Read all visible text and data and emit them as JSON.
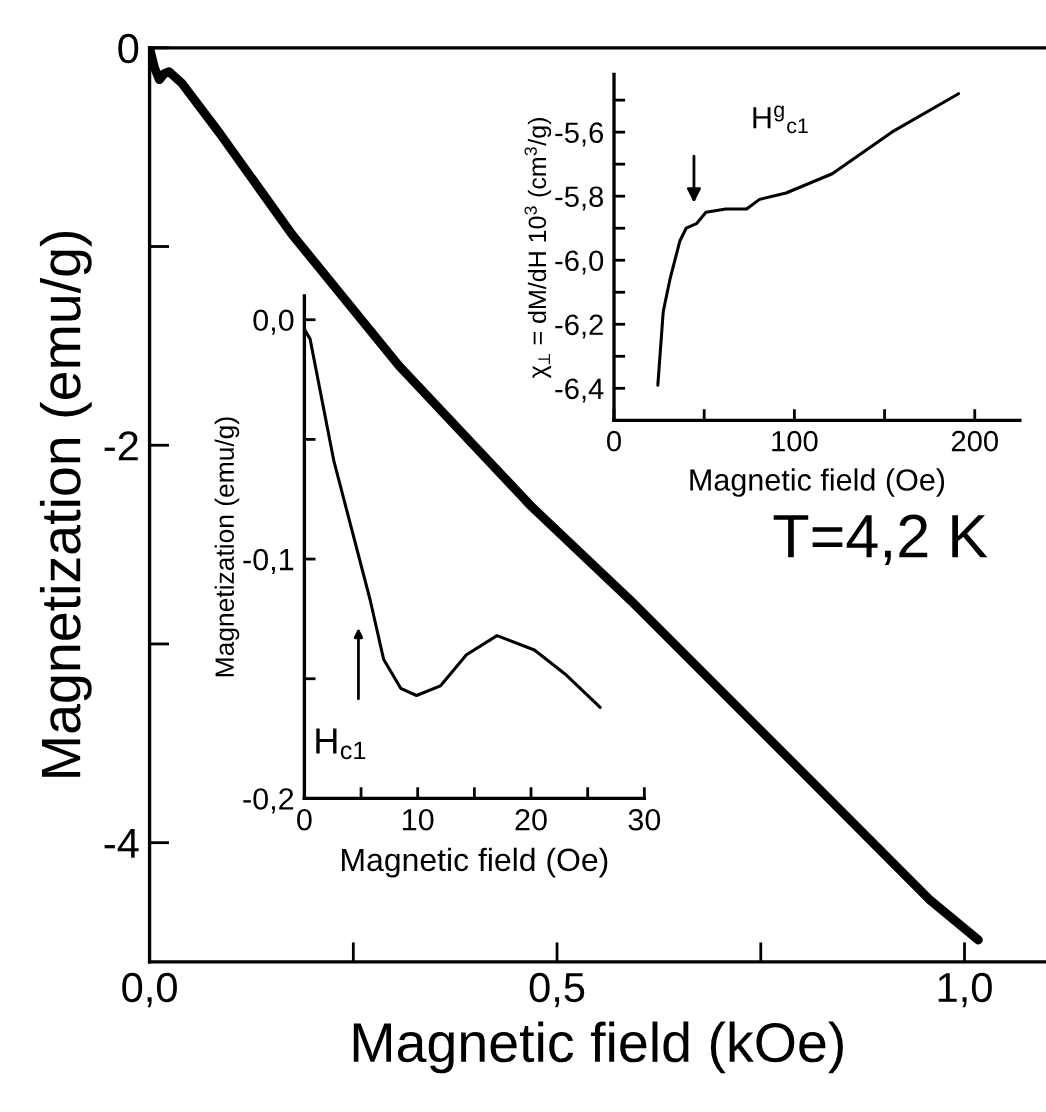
{
  "chart_data": [
    {
      "type": "line",
      "xlabel": "Magnetic field (kOe)",
      "ylabel": "Magnetization (emu/g)",
      "xlim": [
        0,
        1.1
      ],
      "ylim": [
        -4.6,
        0
      ],
      "xticks": [
        {
          "value": 0,
          "label": "0,0"
        },
        {
          "value": 0.25,
          "label": null
        },
        {
          "value": 0.5,
          "label": "0,5"
        },
        {
          "value": 0.75,
          "label": null
        },
        {
          "value": 1.0,
          "label": "1,0"
        }
      ],
      "yticks": [
        -4,
        {
          "value": -3,
          "label": null
        },
        -2,
        {
          "value": -1,
          "label": null
        },
        0
      ],
      "series": [
        {
          "color": "#000000",
          "x": [
            0,
            0.006,
            0.012,
            0.018,
            0.024,
            0.04,
            0.086,
            0.175,
            0.306,
            0.469,
            0.59,
            0.795,
            0.958,
            1.017
          ],
          "values": [
            0,
            -0.1,
            -0.16,
            -0.13,
            -0.12,
            -0.18,
            -0.43,
            -0.94,
            -1.6,
            -2.31,
            -2.78,
            -3.62,
            -4.29,
            -4.49
          ]
        }
      ],
      "annotations": [
        "T=4,2 K"
      ]
    },
    {
      "type": "line",
      "xlabel": "Magnetic field (Oe)",
      "ylabel": "Magnetization (emu/g)",
      "xlim": [
        0,
        30
      ],
      "ylim": [
        -0.2,
        0.01
      ],
      "xticks": [
        0,
        {
          "value": 5,
          "label": null
        },
        10,
        {
          "value": 15,
          "label": null
        },
        20,
        {
          "value": 25,
          "label": null
        },
        30
      ],
      "yticks": [
        {
          "value": -0.2,
          "label": "-0,2"
        },
        {
          "value": -0.15,
          "label": null
        },
        {
          "value": -0.1,
          "label": "-0,1"
        },
        {
          "value": -0.05,
          "label": null
        },
        {
          "value": 0,
          "label": "0,0"
        }
      ],
      "series": [
        {
          "color": "#000000",
          "x": [
            0,
            0.5,
            2.6,
            5.8,
            7.0,
            8.5,
            9.9,
            12,
            14.3,
            17,
            20.3,
            23,
            26.1
          ],
          "values": [
            -0.004,
            -0.008,
            -0.059,
            -0.117,
            -0.142,
            -0.154,
            -0.157,
            -0.153,
            -0.14,
            -0.132,
            -0.138,
            -0.148,
            -0.162
          ]
        }
      ],
      "annotations": [
        "H$_{c1}$"
      ]
    },
    {
      "type": "line",
      "xlabel": "Magnetic field (Oe)",
      "ylabel": "χ$_{⊥}$ = dM/dH 10$^{3}$ (cm$^{3}$/g)",
      "xlim": [
        0,
        225
      ],
      "ylim": [
        -6.5,
        -5.42
      ],
      "xticks": [
        0,
        {
          "value": 50,
          "label": null
        },
        100,
        {
          "value": 150,
          "label": null
        },
        200
      ],
      "yticks": [
        {
          "value": -6.4,
          "label": "-6,4"
        },
        {
          "value": -6.3,
          "label": null
        },
        {
          "value": -6.2,
          "label": "-6,2"
        },
        {
          "value": -6.1,
          "label": null
        },
        {
          "value": -6.0,
          "label": "-6,0"
        },
        {
          "value": -5.9,
          "label": null
        },
        {
          "value": -5.8,
          "label": "-5,8"
        },
        {
          "value": -5.7,
          "label": null
        },
        {
          "value": -5.6,
          "label": "-5,6"
        },
        {
          "value": -5.5,
          "label": null
        }
      ],
      "series": [
        {
          "color": "#000000",
          "x": [
            24.3,
            27.3,
            31,
            36.5,
            40,
            45.7,
            51,
            62,
            73.5,
            80.7,
            95.4,
            121,
            154,
            191
          ],
          "values": [
            -6.39,
            -6.16,
            -6.06,
            -5.94,
            -5.9,
            -5.886,
            -5.85,
            -5.84,
            -5.84,
            -5.81,
            -5.79,
            -5.73,
            -5.6,
            -5.48
          ]
        }
      ],
      "annotations": [
        "H$^{g}$$_{c1}$"
      ]
    }
  ]
}
